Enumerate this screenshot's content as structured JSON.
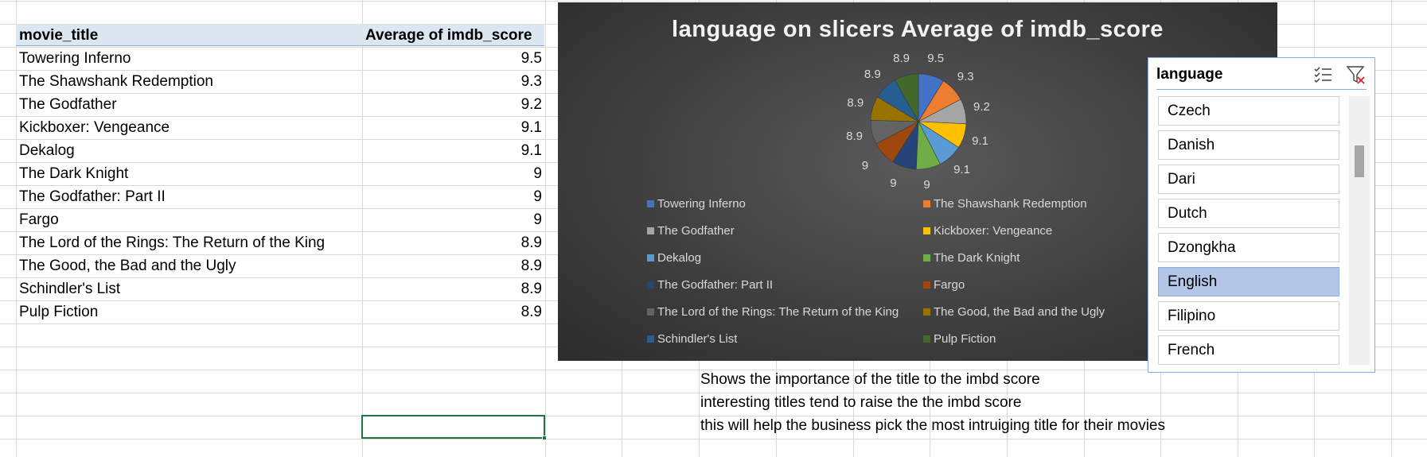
{
  "pivot": {
    "header_title": "movie_title",
    "header_score": "Average of imdb_score",
    "rows": [
      {
        "title": "Towering Inferno",
        "score": "9.5"
      },
      {
        "title": "The Shawshank Redemption",
        "score": "9.3"
      },
      {
        "title": "The Godfather",
        "score": "9.2"
      },
      {
        "title": "Kickboxer: Vengeance",
        "score": "9.1"
      },
      {
        "title": "Dekalog",
        "score": "9.1"
      },
      {
        "title": "The Dark Knight",
        "score": "9"
      },
      {
        "title": "The Godfather: Part II",
        "score": "9"
      },
      {
        "title": "Fargo",
        "score": "9"
      },
      {
        "title": "The Lord of the Rings: The Return of the King",
        "score": "8.9"
      },
      {
        "title": "The Good, the Bad and the Ugly",
        "score": "8.9"
      },
      {
        "title": "Schindler's List",
        "score": "8.9"
      },
      {
        "title": "Pulp Fiction",
        "score": "8.9"
      }
    ]
  },
  "chart_data": {
    "type": "pie",
    "title": "language on slicers Average of imdb_score",
    "categories": [
      "Towering Inferno",
      "The Shawshank Redemption",
      "The Godfather",
      "Kickboxer: Vengeance",
      "Dekalog",
      "The Dark Knight",
      "The Godfather: Part II",
      "Fargo",
      "The Lord of the Rings: The Return of the King",
      "The Good, the Bad and the Ugly",
      "Schindler's List",
      "Pulp Fiction"
    ],
    "values": [
      9.5,
      9.3,
      9.2,
      9.1,
      9.1,
      9,
      9,
      9,
      8.9,
      8.9,
      8.9,
      8.9
    ],
    "data_labels": [
      "9.5",
      "9.3",
      "9.2",
      "9.1",
      "9.1",
      "9",
      "9",
      "9",
      "8.9",
      "8.9",
      "8.9",
      "8.9"
    ],
    "colors": [
      "#4472c4",
      "#ed7d31",
      "#a5a5a5",
      "#ffc000",
      "#5b9bd5",
      "#70ad47",
      "#264478",
      "#9e480e",
      "#636363",
      "#997300",
      "#255e91",
      "#43682b"
    ],
    "legend_position": "bottom"
  },
  "slicer": {
    "title": "language",
    "multiselect_icon": "multi-select-icon",
    "clear_filter_icon": "clear-filter-icon",
    "items": [
      {
        "label": "Czech",
        "selected": false
      },
      {
        "label": "Danish",
        "selected": false
      },
      {
        "label": "Dari",
        "selected": false
      },
      {
        "label": "Dutch",
        "selected": false
      },
      {
        "label": "Dzongkha",
        "selected": false
      },
      {
        "label": "English",
        "selected": true
      },
      {
        "label": "Filipino",
        "selected": false
      },
      {
        "label": "French",
        "selected": false
      }
    ],
    "colors": {
      "selected": "#b4c6e7",
      "border": "#8ea9db"
    }
  },
  "notes": [
    "Shows the importance of the title to the imbd score",
    "interesting titles tend to raise the the imbd score",
    "this will help the business pick the most intruiging title for their movies"
  ]
}
